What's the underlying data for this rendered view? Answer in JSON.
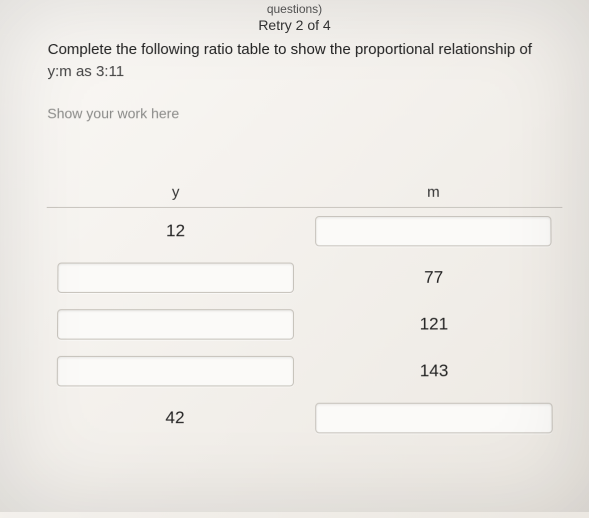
{
  "meta": {
    "top_hint": "questions)",
    "retry": "Retry 2 of 4"
  },
  "question": {
    "line1": "Complete the following ratio table to show the proportional relationship of",
    "line2": "y:m as 3:11"
  },
  "work_label": "Show your work here",
  "table": {
    "col_y": "y",
    "col_m": "m",
    "rows": [
      {
        "y": "12",
        "m": "",
        "y_input": false,
        "m_input": true
      },
      {
        "y": "",
        "m": "77",
        "y_input": true,
        "m_input": false
      },
      {
        "y": "",
        "m": "121",
        "y_input": true,
        "m_input": false
      },
      {
        "y": "",
        "m": "143",
        "y_input": true,
        "m_input": false
      },
      {
        "y": "42",
        "m": "",
        "y_input": false,
        "m_input": true
      }
    ]
  },
  "style": {
    "bg": "#f0ede8",
    "text": "#222222",
    "muted": "#8a8a88",
    "border": "#c9c5bf",
    "field_bg": "#fbfaf8",
    "field_border": "#c7c3bc"
  }
}
